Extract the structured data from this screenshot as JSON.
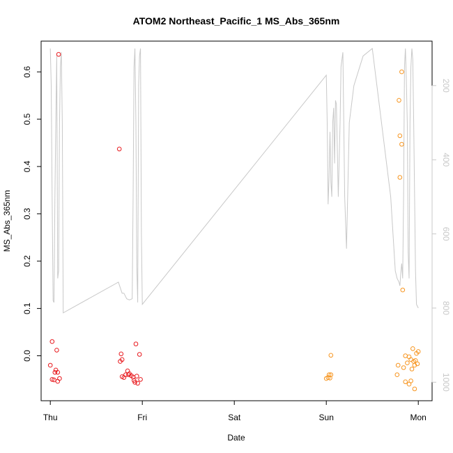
{
  "chart_data": {
    "type": "scatter",
    "title": "ATOM2 Northeast_Pacific_1 MS_Abs_365nm",
    "xlabel": "Date",
    "ylabel": "MS_Abs_365nm",
    "x_ticks": [
      {
        "day": 0,
        "label": "Thu"
      },
      {
        "day": 1,
        "label": "Fri"
      },
      {
        "day": 2,
        "label": "Sat"
      },
      {
        "day": 3,
        "label": "Sun"
      },
      {
        "day": 4,
        "label": "Mon"
      }
    ],
    "xlim": [
      -0.1,
      4.15
    ],
    "ylim": [
      -0.095,
      0.665
    ],
    "y_ticks": [
      0.0,
      0.1,
      0.2,
      0.3,
      0.4,
      0.5,
      0.6
    ],
    "y2_ticks": [
      200,
      400,
      600,
      800,
      1000
    ],
    "y2_range": [
      80,
      1050
    ],
    "grid": false,
    "series": [
      {
        "color": "#e8191e",
        "points": [
          [
            0.09,
            0.637
          ],
          [
            0.02,
            0.03
          ],
          [
            0.07,
            0.012
          ],
          [
            0.0,
            -0.02
          ],
          [
            0.06,
            -0.03
          ],
          [
            0.05,
            -0.035
          ],
          [
            0.08,
            -0.035
          ],
          [
            0.02,
            -0.05
          ],
          [
            0.04,
            -0.051
          ],
          [
            0.1,
            -0.048
          ],
          [
            0.08,
            -0.054
          ],
          [
            0.75,
            0.437
          ],
          [
            0.77,
            0.004
          ],
          [
            0.76,
            -0.012
          ],
          [
            0.78,
            -0.008
          ],
          [
            0.78,
            -0.044
          ],
          [
            0.8,
            -0.046
          ],
          [
            0.84,
            -0.032
          ],
          [
            0.82,
            -0.04
          ],
          [
            0.85,
            -0.04
          ],
          [
            0.86,
            -0.038
          ],
          [
            0.88,
            -0.042
          ],
          [
            0.9,
            -0.045
          ],
          [
            0.91,
            -0.052
          ],
          [
            0.93,
            0.025
          ],
          [
            0.97,
            0.003
          ],
          [
            0.94,
            -0.043
          ],
          [
            0.95,
            -0.058
          ],
          [
            0.98,
            -0.05
          ],
          [
            0.92,
            -0.056
          ]
        ]
      },
      {
        "color": "#f7951f",
        "points": [
          [
            3.05,
            0.001
          ],
          [
            3.03,
            -0.04
          ],
          [
            3.05,
            -0.04
          ],
          [
            3.02,
            -0.046
          ],
          [
            3.0,
            -0.048
          ],
          [
            3.04,
            -0.047
          ],
          [
            3.82,
            0.6
          ],
          [
            3.79,
            0.54
          ],
          [
            3.8,
            0.465
          ],
          [
            3.82,
            0.447
          ],
          [
            3.8,
            0.377
          ],
          [
            3.83,
            0.139
          ],
          [
            3.86,
            0.0
          ],
          [
            3.9,
            -0.002
          ],
          [
            3.92,
            -0.008
          ],
          [
            3.94,
            0.015
          ],
          [
            3.95,
            -0.012
          ],
          [
            3.97,
            -0.01
          ],
          [
            3.98,
            0.005
          ],
          [
            4.0,
            0.009
          ],
          [
            3.99,
            -0.017
          ],
          [
            3.96,
            -0.02
          ],
          [
            3.93,
            -0.028
          ],
          [
            3.84,
            -0.025
          ],
          [
            3.78,
            -0.02
          ],
          [
            3.77,
            -0.04
          ],
          [
            3.88,
            -0.015
          ],
          [
            3.86,
            -0.055
          ],
          [
            3.9,
            -0.06
          ],
          [
            3.92,
            -0.053
          ],
          [
            3.96,
            -0.07
          ]
        ]
      }
    ],
    "secondary_line": {
      "color": "#c8c8c8",
      "points": [
        [
          0.0,
          100
        ],
        [
          0.01,
          200
        ],
        [
          0.02,
          500
        ],
        [
          0.03,
          780
        ],
        [
          0.04,
          785
        ],
        [
          0.05,
          500
        ],
        [
          0.06,
          300
        ],
        [
          0.07,
          120
        ],
        [
          0.08,
          720
        ],
        [
          0.09,
          700
        ],
        [
          0.1,
          300
        ],
        [
          0.11,
          150
        ],
        [
          0.12,
          110
        ],
        [
          0.13,
          300
        ],
        [
          0.14,
          813
        ],
        [
          0.74,
          730
        ],
        [
          0.76,
          745
        ],
        [
          0.78,
          760
        ],
        [
          0.8,
          760
        ],
        [
          0.83,
          775
        ],
        [
          0.86,
          778
        ],
        [
          0.89,
          775
        ],
        [
          0.9,
          500
        ],
        [
          0.91,
          150
        ],
        [
          0.92,
          100
        ],
        [
          0.93,
          300
        ],
        [
          0.94,
          690
        ],
        [
          0.95,
          785
        ],
        [
          0.96,
          200
        ],
        [
          0.97,
          120
        ],
        [
          0.98,
          100
        ],
        [
          0.99,
          600
        ],
        [
          1.0,
          790
        ],
        [
          3.0,
          172
        ],
        [
          3.01,
          300
        ],
        [
          3.02,
          520
        ],
        [
          3.03,
          445
        ],
        [
          3.04,
          325
        ],
        [
          3.05,
          460
        ],
        [
          3.06,
          500
        ],
        [
          3.07,
          300
        ],
        [
          3.08,
          260
        ],
        [
          3.09,
          410
        ],
        [
          3.1,
          240
        ],
        [
          3.11,
          250
        ],
        [
          3.13,
          500
        ],
        [
          3.15,
          300
        ],
        [
          3.16,
          150
        ],
        [
          3.18,
          110
        ],
        [
          3.2,
          500
        ],
        [
          3.22,
          640
        ],
        [
          3.25,
          300
        ],
        [
          3.3,
          200
        ],
        [
          3.4,
          120
        ],
        [
          3.5,
          100
        ],
        [
          3.6,
          300
        ],
        [
          3.7,
          500
        ],
        [
          3.75,
          700
        ],
        [
          3.77,
          720
        ],
        [
          3.79,
          730
        ],
        [
          3.8,
          740
        ],
        [
          3.81,
          705
        ],
        [
          3.82,
          680
        ],
        [
          3.83,
          720
        ],
        [
          3.84,
          500
        ],
        [
          3.85,
          150
        ],
        [
          3.86,
          100
        ],
        [
          3.87,
          180
        ],
        [
          3.88,
          300
        ],
        [
          3.89,
          650
        ],
        [
          3.9,
          720
        ],
        [
          3.91,
          300
        ],
        [
          3.92,
          150
        ],
        [
          3.93,
          100
        ],
        [
          3.94,
          130
        ],
        [
          3.95,
          300
        ],
        [
          3.96,
          500
        ],
        [
          3.97,
          700
        ],
        [
          3.98,
          790
        ],
        [
          3.99,
          795
        ],
        [
          4.0,
          800
        ]
      ]
    }
  }
}
